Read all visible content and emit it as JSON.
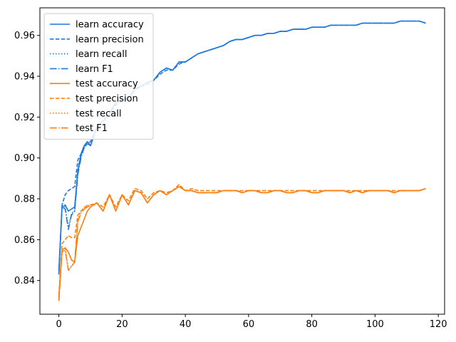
{
  "chart_data": {
    "type": "line",
    "title": "",
    "xlabel": "",
    "ylabel": "",
    "xlim": [
      -6,
      122
    ],
    "ylim": [
      0.8235,
      0.9735
    ],
    "xticks": [
      0,
      20,
      40,
      60,
      80,
      100,
      120
    ],
    "yticks": [
      0.84,
      0.86,
      0.88,
      0.9,
      0.92,
      0.94,
      0.96
    ],
    "ytick_format": 2,
    "grid": false,
    "legend_position": "top-left",
    "colors": {
      "learn": "#1f77e0",
      "test": "#ff7f0e"
    },
    "x": [
      0,
      1,
      2,
      3,
      4,
      5,
      6,
      7,
      8,
      9,
      10,
      12,
      14,
      16,
      18,
      20,
      22,
      24,
      26,
      28,
      30,
      32,
      34,
      36,
      38,
      40,
      42,
      44,
      46,
      48,
      50,
      52,
      54,
      56,
      58,
      60,
      62,
      64,
      66,
      68,
      70,
      72,
      74,
      76,
      78,
      80,
      82,
      84,
      86,
      88,
      90,
      92,
      94,
      96,
      98,
      100,
      102,
      104,
      106,
      108,
      110,
      112,
      114,
      116
    ],
    "series": [
      {
        "name": "learn accuracy",
        "group": "learn",
        "dash": "solid",
        "values": [
          0.845,
          0.876,
          0.877,
          0.874,
          0.875,
          0.876,
          0.894,
          0.902,
          0.906,
          0.908,
          0.906,
          0.915,
          0.918,
          0.922,
          0.927,
          0.929,
          0.929,
          0.934,
          0.935,
          0.937,
          0.938,
          0.942,
          0.944,
          0.943,
          0.947,
          0.947,
          0.949,
          0.951,
          0.952,
          0.953,
          0.954,
          0.955,
          0.957,
          0.958,
          0.958,
          0.959,
          0.96,
          0.96,
          0.961,
          0.961,
          0.962,
          0.962,
          0.963,
          0.963,
          0.963,
          0.964,
          0.964,
          0.964,
          0.965,
          0.965,
          0.965,
          0.965,
          0.965,
          0.966,
          0.966,
          0.966,
          0.966,
          0.966,
          0.966,
          0.967,
          0.967,
          0.967,
          0.967,
          0.966
        ]
      },
      {
        "name": "learn precision",
        "group": "learn",
        "dash": "dashed",
        "values": [
          0.843,
          0.877,
          0.882,
          0.884,
          0.885,
          0.886,
          0.899,
          0.902,
          0.905,
          0.907,
          0.908,
          0.915,
          0.918,
          0.922,
          0.926,
          0.928,
          0.929,
          0.933,
          0.935,
          0.936,
          0.938,
          0.941,
          0.943,
          0.943,
          0.946,
          0.947,
          0.949,
          0.951,
          0.952,
          0.953,
          0.954,
          0.955,
          0.957,
          0.958,
          0.958,
          0.959,
          0.96,
          0.96,
          0.961,
          0.961,
          0.962,
          0.962,
          0.963,
          0.963,
          0.963,
          0.964,
          0.964,
          0.964,
          0.965,
          0.965,
          0.965,
          0.965,
          0.965,
          0.966,
          0.966,
          0.966,
          0.966,
          0.966,
          0.966,
          0.967,
          0.967,
          0.967,
          0.967,
          0.966
        ]
      },
      {
        "name": "learn recall",
        "group": "learn",
        "dash": "dotted",
        "values": [
          0.845,
          0.876,
          0.876,
          0.866,
          0.873,
          0.874,
          0.893,
          0.901,
          0.906,
          0.908,
          0.906,
          0.915,
          0.918,
          0.922,
          0.927,
          0.929,
          0.929,
          0.934,
          0.935,
          0.937,
          0.938,
          0.942,
          0.944,
          0.943,
          0.947,
          0.947,
          0.949,
          0.951,
          0.952,
          0.953,
          0.954,
          0.955,
          0.957,
          0.958,
          0.958,
          0.959,
          0.96,
          0.96,
          0.961,
          0.961,
          0.962,
          0.962,
          0.963,
          0.963,
          0.963,
          0.964,
          0.964,
          0.964,
          0.965,
          0.965,
          0.965,
          0.965,
          0.965,
          0.966,
          0.966,
          0.966,
          0.966,
          0.966,
          0.966,
          0.967,
          0.967,
          0.967,
          0.967,
          0.966
        ]
      },
      {
        "name": "learn F1",
        "group": "learn",
        "dash": "dashdot",
        "values": [
          0.843,
          0.876,
          0.875,
          0.865,
          0.872,
          0.874,
          0.892,
          0.9,
          0.905,
          0.907,
          0.906,
          0.915,
          0.918,
          0.922,
          0.927,
          0.929,
          0.929,
          0.934,
          0.935,
          0.937,
          0.938,
          0.942,
          0.944,
          0.943,
          0.947,
          0.947,
          0.949,
          0.951,
          0.952,
          0.953,
          0.954,
          0.955,
          0.957,
          0.958,
          0.958,
          0.959,
          0.96,
          0.96,
          0.961,
          0.961,
          0.962,
          0.962,
          0.963,
          0.963,
          0.963,
          0.964,
          0.964,
          0.964,
          0.965,
          0.965,
          0.965,
          0.965,
          0.965,
          0.966,
          0.966,
          0.966,
          0.966,
          0.966,
          0.966,
          0.967,
          0.967,
          0.967,
          0.967,
          0.966
        ]
      },
      {
        "name": "test accuracy",
        "group": "test",
        "dash": "solid",
        "values": [
          0.831,
          0.855,
          0.856,
          0.854,
          0.85,
          0.849,
          0.862,
          0.866,
          0.87,
          0.874,
          0.876,
          0.878,
          0.874,
          0.882,
          0.874,
          0.882,
          0.877,
          0.884,
          0.883,
          0.878,
          0.882,
          0.884,
          0.882,
          0.884,
          0.886,
          0.884,
          0.884,
          0.883,
          0.883,
          0.883,
          0.883,
          0.884,
          0.884,
          0.884,
          0.883,
          0.884,
          0.884,
          0.883,
          0.883,
          0.884,
          0.884,
          0.883,
          0.883,
          0.884,
          0.884,
          0.883,
          0.883,
          0.884,
          0.884,
          0.884,
          0.884,
          0.883,
          0.884,
          0.883,
          0.884,
          0.884,
          0.884,
          0.884,
          0.883,
          0.884,
          0.884,
          0.884,
          0.884,
          0.885
        ]
      },
      {
        "name": "test precision",
        "group": "test",
        "dash": "dashed",
        "values": [
          0.833,
          0.858,
          0.86,
          0.862,
          0.861,
          0.861,
          0.872,
          0.874,
          0.875,
          0.876,
          0.877,
          0.878,
          0.876,
          0.882,
          0.876,
          0.882,
          0.879,
          0.885,
          0.884,
          0.88,
          0.883,
          0.884,
          0.883,
          0.884,
          0.887,
          0.884,
          0.885,
          0.884,
          0.884,
          0.884,
          0.884,
          0.884,
          0.884,
          0.884,
          0.884,
          0.884,
          0.884,
          0.884,
          0.884,
          0.884,
          0.884,
          0.884,
          0.884,
          0.884,
          0.884,
          0.884,
          0.884,
          0.884,
          0.884,
          0.884,
          0.884,
          0.884,
          0.884,
          0.884,
          0.884,
          0.884,
          0.884,
          0.884,
          0.884,
          0.884,
          0.884,
          0.884,
          0.884,
          0.885
        ]
      },
      {
        "name": "test recall",
        "group": "test",
        "dash": "dotted",
        "values": [
          0.831,
          0.855,
          0.856,
          0.845,
          0.847,
          0.849,
          0.87,
          0.874,
          0.876,
          0.877,
          0.876,
          0.878,
          0.874,
          0.882,
          0.874,
          0.882,
          0.877,
          0.884,
          0.883,
          0.878,
          0.882,
          0.884,
          0.882,
          0.884,
          0.886,
          0.884,
          0.884,
          0.883,
          0.883,
          0.883,
          0.883,
          0.884,
          0.884,
          0.884,
          0.883,
          0.884,
          0.884,
          0.883,
          0.883,
          0.884,
          0.884,
          0.883,
          0.883,
          0.884,
          0.884,
          0.883,
          0.883,
          0.884,
          0.884,
          0.884,
          0.884,
          0.883,
          0.884,
          0.883,
          0.884,
          0.884,
          0.884,
          0.884,
          0.883,
          0.884,
          0.884,
          0.884,
          0.884,
          0.885
        ]
      },
      {
        "name": "test F1",
        "group": "test",
        "dash": "dashdot",
        "values": [
          0.83,
          0.854,
          0.855,
          0.845,
          0.847,
          0.849,
          0.869,
          0.873,
          0.875,
          0.877,
          0.876,
          0.878,
          0.874,
          0.882,
          0.874,
          0.882,
          0.877,
          0.884,
          0.883,
          0.878,
          0.882,
          0.884,
          0.882,
          0.884,
          0.886,
          0.884,
          0.884,
          0.883,
          0.883,
          0.883,
          0.883,
          0.884,
          0.884,
          0.884,
          0.883,
          0.884,
          0.884,
          0.883,
          0.883,
          0.884,
          0.884,
          0.883,
          0.883,
          0.884,
          0.884,
          0.883,
          0.883,
          0.884,
          0.884,
          0.884,
          0.884,
          0.883,
          0.884,
          0.883,
          0.884,
          0.884,
          0.884,
          0.884,
          0.883,
          0.884,
          0.884,
          0.884,
          0.884,
          0.885
        ]
      }
    ]
  }
}
